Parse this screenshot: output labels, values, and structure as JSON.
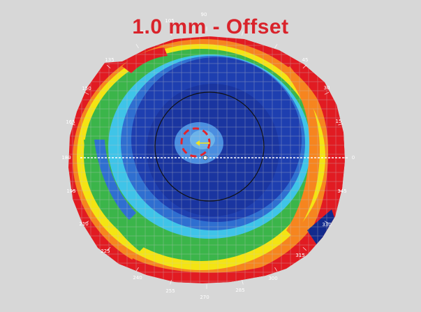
{
  "title": "1.0 mm - Offset",
  "colors": {
    "background": "#d7d7d7",
    "title": "#d9232b",
    "red": "#e11b22",
    "orange": "#f6851f",
    "yellow": "#f4e413",
    "green": "#3bb54a",
    "cyan": "#3fc4e8",
    "blue": "#1e3fb0",
    "dark_blue": "#122a8c",
    "arrow": "#f2e21e",
    "pupil_ring": "#e3232b"
  },
  "angle_labels": [
    "90",
    "105",
    "120",
    "135",
    "45",
    "30",
    "150",
    "165",
    "15",
    "180",
    "0",
    "195",
    "345",
    "210",
    "330",
    "225",
    "315",
    "240",
    "255",
    "270",
    "285",
    "300"
  ],
  "icons": {
    "displacement_arrow": "arrow-left-icon",
    "pupil_marker": "dashed-circle-icon",
    "center_marker": "open-circle-icon"
  }
}
